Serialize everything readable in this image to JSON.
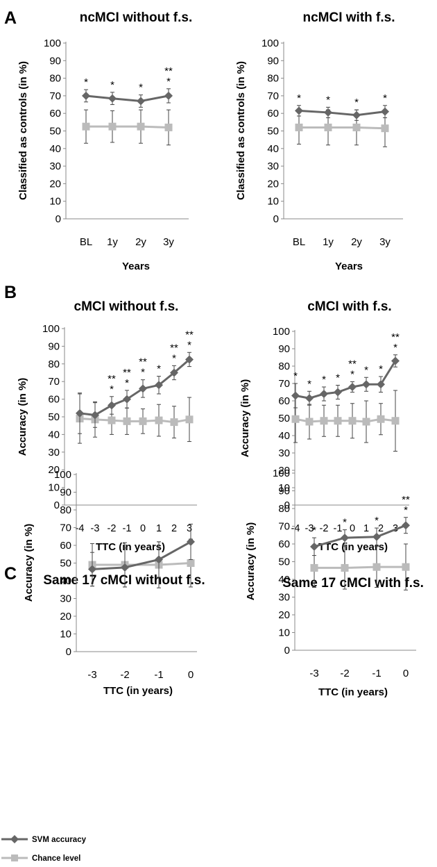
{
  "panel_letters": [
    "A",
    "B",
    "C"
  ],
  "legend": {
    "svm_label": "SVM accuracy",
    "chance_label": "Chance level",
    "svm_color": "#666666",
    "chance_color": "#bbbbbb"
  },
  "chart_data": [
    {
      "type": "line",
      "title": "ncMCI without f.s.",
      "xlabel": "Years",
      "ylabel": "Classified as controls (in %)",
      "categories": [
        "BL",
        "1y",
        "2y",
        "3y"
      ],
      "ylim": [
        0,
        100
      ],
      "yticks": [
        0,
        10,
        20,
        30,
        40,
        50,
        60,
        70,
        80,
        90,
        100
      ],
      "series": [
        {
          "name": "SVM accuracy",
          "values": [
            70,
            68.5,
            67,
            70
          ],
          "err": [
            3.5,
            3.5,
            3.5,
            4
          ]
        },
        {
          "name": "Chance level",
          "values": [
            52.5,
            52.5,
            52.5,
            52
          ],
          "err": [
            9.5,
            9,
            9.5,
            10
          ]
        }
      ],
      "annotations": [
        "*",
        "*",
        "*",
        "**\n*"
      ]
    },
    {
      "type": "line",
      "title": "ncMCI with f.s.",
      "xlabel": "Years",
      "ylabel": "Classified as controls (in %)",
      "categories": [
        "BL",
        "1y",
        "2y",
        "3y"
      ],
      "ylim": [
        0,
        100
      ],
      "yticks": [
        0,
        10,
        20,
        30,
        40,
        50,
        60,
        70,
        80,
        90,
        100
      ],
      "series": [
        {
          "name": "SVM accuracy",
          "values": [
            61.5,
            60.5,
            59,
            61
          ],
          "err": [
            3,
            3,
            3,
            3.5
          ]
        },
        {
          "name": "Chance level",
          "values": [
            52,
            52,
            52,
            51.5
          ],
          "err": [
            9.5,
            10,
            10,
            10.5
          ]
        }
      ],
      "annotations": [
        "*",
        "*",
        "*",
        "*"
      ]
    },
    {
      "type": "line",
      "title": "cMCI without f.s.",
      "xlabel": "TTC (in years)",
      "ylabel": "Accuracy (in %)",
      "categories": [
        "-4",
        "-3",
        "-2",
        "-1",
        "0",
        "1",
        "2",
        "3"
      ],
      "ylim": [
        0,
        100
      ],
      "yticks": [
        0,
        10,
        20,
        30,
        40,
        50,
        60,
        70,
        80,
        90,
        100
      ],
      "series": [
        {
          "name": "SVM accuracy",
          "values": [
            52,
            51,
            56.5,
            60,
            66,
            68,
            75,
            82.5
          ],
          "err": [
            11.5,
            7,
            5,
            5,
            5,
            5,
            4,
            4
          ]
        },
        {
          "name": "Chance level",
          "values": [
            49,
            48.5,
            48,
            47.5,
            47.5,
            48,
            47,
            48.5
          ],
          "err": [
            14,
            10,
            8,
            7.5,
            7,
            9,
            9,
            12.5
          ]
        }
      ],
      "annotations": [
        "",
        "",
        "**\n*",
        "**\n*",
        "**\n*",
        "*",
        "**\n*",
        "**\n*"
      ]
    },
    {
      "type": "line",
      "title": "cMCI with f.s.",
      "xlabel": "TTC (in years)",
      "ylabel": "Accuracy (in %)",
      "categories": [
        "-4",
        "-3",
        "-2",
        "-1",
        "0",
        "1",
        "2",
        "3"
      ],
      "ylim": [
        0,
        100
      ],
      "yticks": [
        0,
        10,
        20,
        30,
        40,
        50,
        60,
        70,
        80,
        90,
        100
      ],
      "series": [
        {
          "name": "SVM accuracy",
          "values": [
            63,
            61.5,
            64,
            65,
            68,
            69.5,
            69.5,
            83
          ],
          "err": [
            7,
            4,
            4,
            4,
            3,
            4,
            4.5,
            3.5
          ]
        },
        {
          "name": "Chance level",
          "values": [
            49.5,
            48,
            48.5,
            48.5,
            48.5,
            48,
            49.5,
            48.5
          ],
          "err": [
            13.5,
            10,
            9,
            9,
            10,
            12,
            9,
            17.5
          ]
        }
      ],
      "annotations": [
        "*",
        "*",
        "*",
        "*",
        "**\n*",
        "*",
        "*",
        "**\n*"
      ]
    },
    {
      "type": "line",
      "title": "Same 17 cMCI without f.s.",
      "xlabel": "TTC (in years)",
      "ylabel": "Accuracy (in %)",
      "categories": [
        "-3",
        "-2",
        "-1",
        "0"
      ],
      "ylim": [
        0,
        100
      ],
      "yticks": [
        0,
        10,
        20,
        30,
        40,
        50,
        60,
        70,
        80,
        90,
        100
      ],
      "series": [
        {
          "name": "SVM accuracy",
          "values": [
            46.5,
            47.5,
            52,
            62
          ],
          "err": [
            9.5,
            11,
            10,
            10
          ]
        },
        {
          "name": "Chance level",
          "values": [
            49,
            49,
            49,
            50
          ],
          "err": [
            12,
            12.5,
            13,
            13.5
          ]
        }
      ],
      "annotations": [
        "",
        "",
        "",
        ""
      ]
    },
    {
      "type": "line",
      "title": "Same 17 cMCI with f.s.",
      "xlabel": "TTC (in years)",
      "ylabel": "Accuracy (in %)",
      "categories": [
        "-3",
        "-2",
        "-1",
        "0"
      ],
      "ylim": [
        0,
        100
      ],
      "yticks": [
        0,
        10,
        20,
        30,
        40,
        50,
        60,
        70,
        80,
        90,
        100
      ],
      "series": [
        {
          "name": "SVM accuracy",
          "values": [
            58.5,
            63.5,
            64,
            70.5
          ],
          "err": [
            5,
            4.5,
            5,
            4.5
          ]
        },
        {
          "name": "Chance level",
          "values": [
            46.5,
            46.5,
            47,
            47
          ],
          "err": [
            11,
            12,
            11.5,
            13
          ]
        }
      ],
      "annotations": [
        "*",
        "*",
        "*",
        "**\n*"
      ]
    }
  ]
}
